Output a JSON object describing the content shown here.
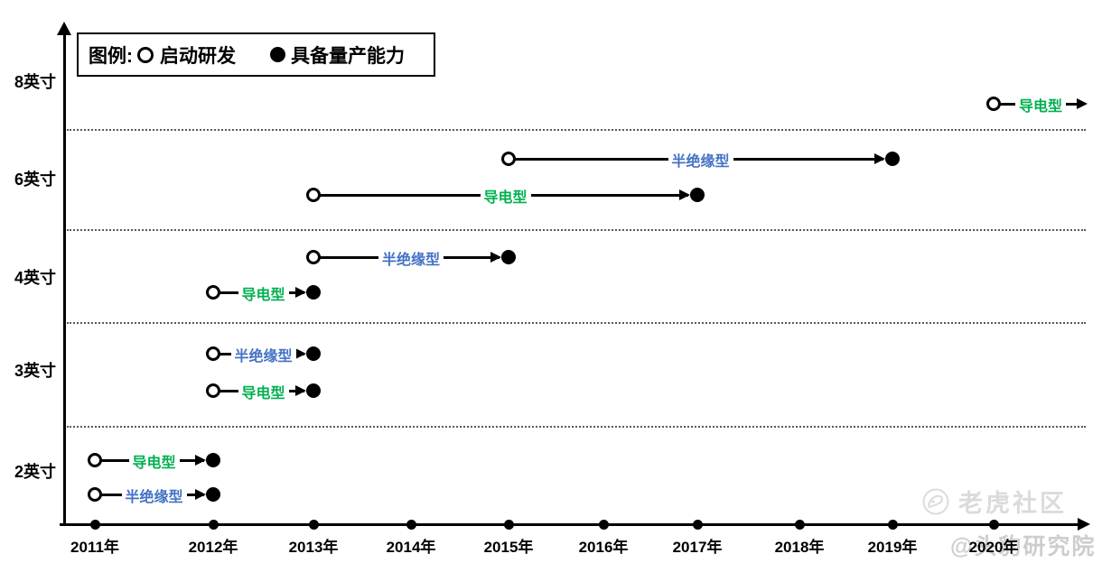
{
  "legend": {
    "prefix": "图例:",
    "items": [
      {
        "symbol": "open-circle",
        "label": "启动研发"
      },
      {
        "symbol": "filled-circle",
        "label": "具备量产能力"
      }
    ]
  },
  "colors": {
    "conductive_green": "#00B050",
    "semi_insulating_blue": "#4472C4",
    "axis_black": "#000000",
    "separator_gray": "#595959",
    "watermark_gray": "#DBDBDB"
  },
  "chart_data": {
    "type": "gantt",
    "description": "Wafer R&D timeline by size; open circle = R&D start (启动研发), filled circle = mass-production capability reached (具备量产能力); arrow without end dot = still ongoing",
    "x_ticks": [
      "2011年",
      "2012年",
      "2013年",
      "2014年",
      "2015年",
      "2016年",
      "2017年",
      "2018年",
      "2019年",
      "2020年"
    ],
    "x_range": [
      2011,
      2020
    ],
    "y_categories": [
      "8英寸",
      "6英寸",
      "4英寸",
      "3英寸",
      "2英寸"
    ],
    "legend_position": "top-left",
    "grid": "dotted horizontal separators between size bands",
    "series": [
      {
        "wafer_size": "8英寸",
        "label": "导电型",
        "color_key": "conductive_green",
        "start_year": 2020,
        "end_year": null,
        "ongoing": true
      },
      {
        "wafer_size": "6英寸",
        "label": "半绝缘型",
        "color_key": "semi_insulating_blue",
        "start_year": 2015,
        "end_year": 2019,
        "ongoing": false
      },
      {
        "wafer_size": "6英寸",
        "label": "导电型",
        "color_key": "conductive_green",
        "start_year": 2013,
        "end_year": 2017,
        "ongoing": false
      },
      {
        "wafer_size": "4英寸",
        "label": "半绝缘型",
        "color_key": "semi_insulating_blue",
        "start_year": 2013,
        "end_year": 2015,
        "ongoing": false
      },
      {
        "wafer_size": "4英寸",
        "label": "导电型",
        "color_key": "conductive_green",
        "start_year": 2012,
        "end_year": 2013,
        "ongoing": false
      },
      {
        "wafer_size": "3英寸",
        "label": "半绝缘型",
        "color_key": "semi_insulating_blue",
        "start_year": 2012,
        "end_year": 2013,
        "ongoing": false
      },
      {
        "wafer_size": "3英寸",
        "label": "导电型",
        "color_key": "conductive_green",
        "start_year": 2012,
        "end_year": 2013,
        "ongoing": false
      },
      {
        "wafer_size": "2英寸",
        "label": "导电型",
        "color_key": "conductive_green",
        "start_year": 2011,
        "end_year": 2012,
        "ongoing": false
      },
      {
        "wafer_size": "2英寸",
        "label": "半绝缘型",
        "color_key": "semi_insulating_blue",
        "start_year": 2011,
        "end_year": 2012,
        "ongoing": false
      }
    ]
  },
  "watermarks": {
    "community": "老虎社区",
    "research_institute": "@头豹研究院"
  }
}
